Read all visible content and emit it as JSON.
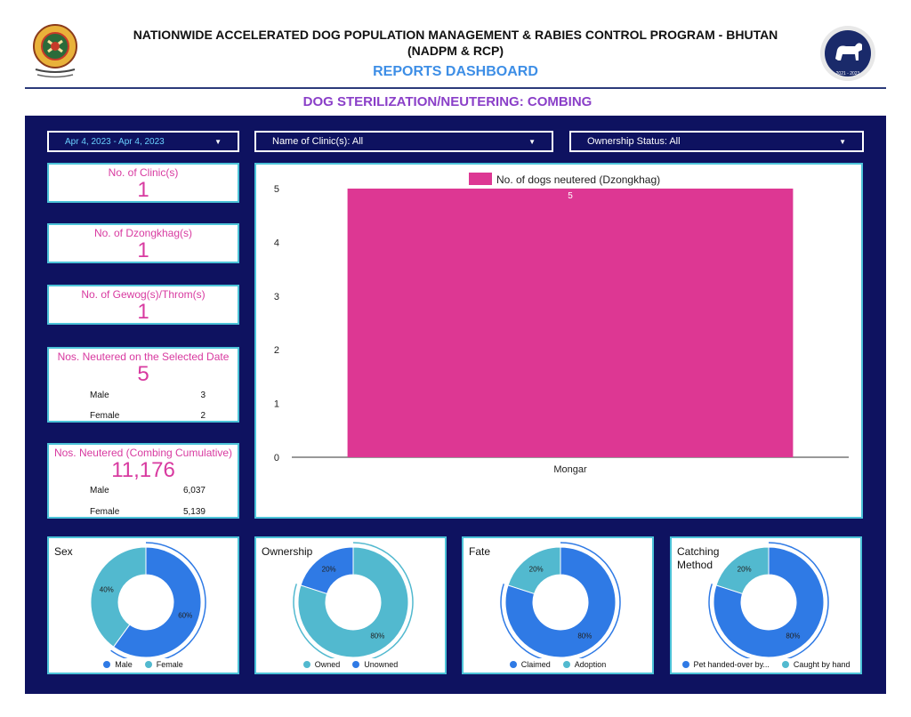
{
  "header": {
    "title_line1": "NATIONWIDE ACCELERATED DOG POPULATION MANAGEMENT & RABIES CONTROL PROGRAM - BHUTAN",
    "title_line2": "(NADPM & RCP)",
    "subtitle": "REPORTS DASHBOARD",
    "section": "DOG STERILIZATION/NEUTERING: COMBING",
    "logo_right_text": "2021 - 2023"
  },
  "filters": {
    "date": "Apr 4, 2023 - Apr 4, 2023",
    "clinic": "Name of Clinic(s): All",
    "ownership": "Ownership Status: All"
  },
  "kpis": {
    "clinics": {
      "label": "No. of Clinic(s)",
      "value": "1"
    },
    "dzongkhags": {
      "label": "No. of Dzongkhag(s)",
      "value": "1"
    },
    "gewogs": {
      "label": "No. of Gewog(s)/Throm(s)",
      "value": "1"
    },
    "selected_date": {
      "label": "Nos. Neutered on the Selected Date",
      "value": "5",
      "male_label": "Male",
      "male_value": "3",
      "female_label": "Female",
      "female_value": "2"
    },
    "cumulative": {
      "label": "Nos. Neutered (Combing Cumulative)",
      "value": "11,176",
      "male_label": "Male",
      "male_value": "6,037",
      "female_label": "Female",
      "female_value": "5,139"
    }
  },
  "colors": {
    "panel": "#0e1260",
    "accent_pink": "#d83aa0",
    "bar": "#dd3793",
    "blue": "#2f7ae5",
    "teal": "#52b9cf",
    "border": "#4cc3d8"
  },
  "chart_data": [
    {
      "type": "bar",
      "categories": [
        "Mongar"
      ],
      "series": [
        {
          "name": "No. of dogs neutered (Dzongkhag)",
          "values": [
            5
          ]
        }
      ],
      "data_labels": [
        "5"
      ],
      "yticks": [
        0,
        1,
        2,
        3,
        4,
        5
      ],
      "ylim": [
        0,
        5
      ],
      "legend": "top"
    },
    {
      "type": "pie",
      "title": "Sex",
      "slices": [
        {
          "name": "Male",
          "value": 60,
          "label": "60%",
          "color": "#2f7ae5"
        },
        {
          "name": "Female",
          "value": 40,
          "label": "40%",
          "color": "#52b9cf"
        }
      ]
    },
    {
      "type": "pie",
      "title": "Ownership",
      "slices": [
        {
          "name": "Owned",
          "value": 80,
          "label": "80%",
          "color": "#52b9cf"
        },
        {
          "name": "Unowned",
          "value": 20,
          "label": "20%",
          "color": "#2f7ae5"
        }
      ]
    },
    {
      "type": "pie",
      "title": "Fate",
      "slices": [
        {
          "name": "Claimed",
          "value": 80,
          "label": "80%",
          "color": "#2f7ae5"
        },
        {
          "name": "Adoption",
          "value": 20,
          "label": "20%",
          "color": "#52b9cf"
        }
      ]
    },
    {
      "type": "pie",
      "title": "Catching Method",
      "slices": [
        {
          "name": "Pet handed-over by...",
          "value": 80,
          "label": "80%",
          "color": "#2f7ae5"
        },
        {
          "name": "Caught by hand",
          "value": 20,
          "label": "20%",
          "color": "#52b9cf"
        }
      ]
    }
  ]
}
